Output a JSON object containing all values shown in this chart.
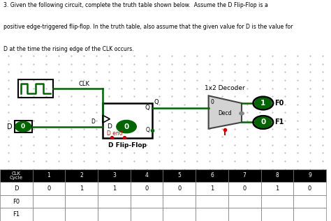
{
  "title_line1": "3. Given the following circuit, complete the truth table shown below.  Assume the D Flip-Flop is a",
  "title_line2": "positive edge-triggered flip-flop. In the truth table, also assume that the given value for D is the value for",
  "title_line3": "D at the time the rising edge of the CLK occurs.",
  "clk_cycles": [
    "1",
    "2",
    "3",
    "4",
    "5",
    "6",
    "7",
    "8",
    "9"
  ],
  "D_values": [
    "0",
    "1",
    "1",
    "0",
    "0",
    "1",
    "0",
    "1",
    "0"
  ],
  "F0_values": [
    "",
    "",
    "",
    "",
    "",
    "",
    "",
    "",
    ""
  ],
  "F1_values": [
    "",
    "",
    "",
    "",
    "",
    "",
    "",
    "",
    ""
  ],
  "wire_color": "#006400",
  "decoder_label": "1x2 Decoder",
  "decoder_body": "Decd",
  "ff_label": "D Flip-Flop",
  "clk_label": "CLK",
  "d_label": "D",
  "q_label": "Q",
  "f0_val": "1",
  "f1_val": "0",
  "d_ff_val": "0",
  "d_in_val": "0",
  "den_label": "D en0",
  "dot_color": "#bbbbbb",
  "red_color": "#cc0000",
  "black": "#000000",
  "white": "#ffffff",
  "green_dark": "#006400",
  "gray_dec": "#d3d3d3"
}
